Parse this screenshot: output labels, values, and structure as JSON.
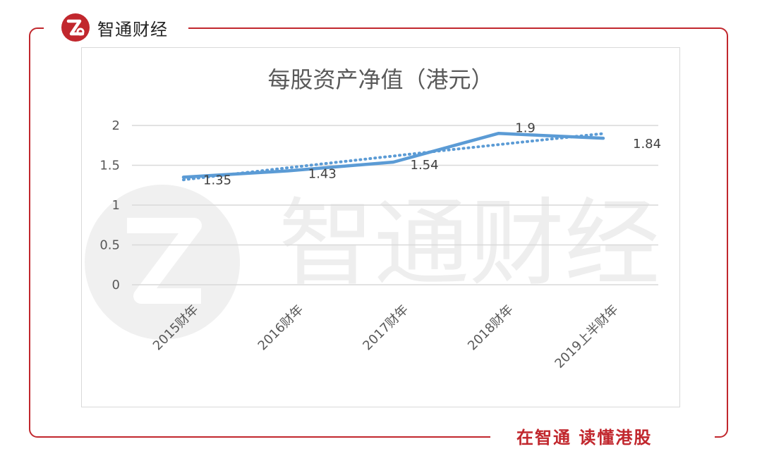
{
  "brand": {
    "name": "智通财经",
    "logo_icon": "zt-logo-icon"
  },
  "footer": {
    "slogan": "在智通  读懂港股"
  },
  "watermark": {
    "text": "智通财经"
  },
  "colors": {
    "accent": "#c1272d",
    "series": "#5b9bd5",
    "grid": "#d9d9d9",
    "axis_text": "#595959"
  },
  "chart_data": {
    "type": "line",
    "title": "每股资产净值（港元）",
    "categories": [
      "2015财年",
      "2016财年",
      "2017财年",
      "2018财年",
      "2019上半财年"
    ],
    "series": [
      {
        "values": [
          1.35,
          1.43,
          1.54,
          1.9,
          1.84
        ],
        "data_labels": [
          "1.35",
          "1.43",
          "1.54",
          "1.9",
          "1.84"
        ]
      }
    ],
    "trendline": {
      "style": "dotted",
      "kind": "polynomial"
    },
    "yticks": [
      "0",
      "0.5",
      "1",
      "1.5",
      "2"
    ],
    "ylim": [
      0,
      2
    ],
    "grid": true,
    "legend": "none",
    "xlabel": "",
    "ylabel": ""
  }
}
